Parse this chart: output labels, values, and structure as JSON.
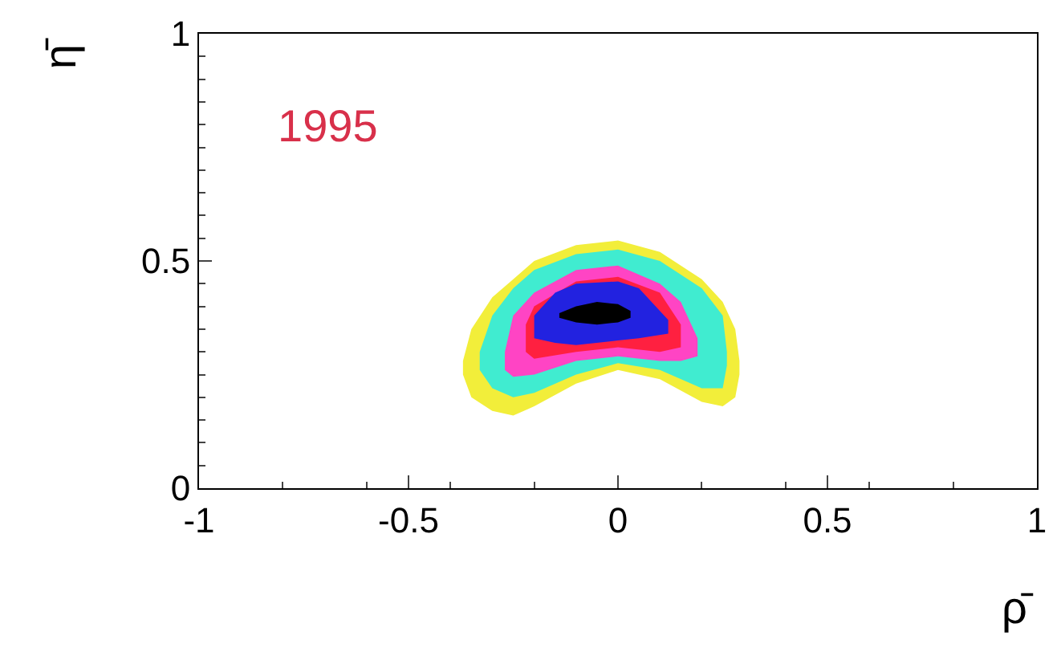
{
  "chart_data": {
    "type": "area",
    "xlabel": "ρ̄",
    "ylabel": "η̄",
    "annotations": [
      "1995"
    ],
    "xlim": [
      -1,
      1
    ],
    "ylim": [
      0,
      1
    ],
    "xticks": [
      -1,
      -0.5,
      0,
      0.5,
      1
    ],
    "yticks": [
      0,
      0.5,
      1
    ],
    "grid": false,
    "series": [
      {
        "color": "#f2ee3a",
        "x": [
          -0.37,
          -0.35,
          -0.3,
          -0.25,
          -0.2,
          -0.1,
          0,
          0.1,
          0.2,
          0.25,
          0.28,
          0.29
        ],
        "values": [
          null,
          null,
          null,
          null,
          null,
          null,
          null,
          null,
          null,
          null,
          null,
          null
        ],
        "upper": [
          0.28,
          0.35,
          0.42,
          0.46,
          0.5,
          0.535,
          0.545,
          0.52,
          0.46,
          0.41,
          0.35,
          0.28
        ],
        "lower": [
          0.25,
          0.2,
          0.17,
          0.16,
          0.18,
          0.23,
          0.26,
          0.24,
          0.19,
          0.18,
          0.2,
          0.25
        ]
      },
      {
        "color": "#40ecd0",
        "x": [
          -0.33,
          -0.3,
          -0.25,
          -0.2,
          -0.1,
          0,
          0.1,
          0.2,
          0.25,
          0.26
        ],
        "values": [
          null,
          null,
          null,
          null,
          null,
          null,
          null,
          null,
          null,
          null
        ],
        "upper": [
          0.3,
          0.38,
          0.44,
          0.48,
          0.515,
          0.525,
          0.5,
          0.44,
          0.38,
          0.3
        ],
        "lower": [
          0.26,
          0.22,
          0.2,
          0.21,
          0.25,
          0.275,
          0.26,
          0.22,
          0.22,
          0.27
        ]
      },
      {
        "color": "#ff44c4",
        "x": [
          -0.27,
          -0.25,
          -0.2,
          -0.1,
          0,
          0.1,
          0.15,
          0.19
        ],
        "values": [
          null,
          null,
          null,
          null,
          null,
          null,
          null,
          null
        ],
        "upper": [
          0.3,
          0.38,
          0.43,
          0.48,
          0.49,
          0.45,
          0.41,
          0.33
        ],
        "lower": [
          0.26,
          0.245,
          0.25,
          0.28,
          0.29,
          0.28,
          0.28,
          0.29
        ]
      },
      {
        "color": "#ff2040",
        "x": [
          -0.22,
          -0.2,
          -0.1,
          0,
          0.1,
          0.15
        ],
        "values": [
          null,
          null,
          null,
          null,
          null,
          null
        ],
        "upper": [
          0.36,
          0.4,
          0.455,
          0.465,
          0.43,
          0.36
        ],
        "lower": [
          0.3,
          0.285,
          0.3,
          0.31,
          0.3,
          0.31
        ]
      },
      {
        "color": "#2222e0",
        "x": [
          -0.2,
          -0.15,
          -0.1,
          0,
          0.05,
          0.12
        ],
        "values": [
          null,
          null,
          null,
          null,
          null,
          null
        ],
        "upper": [
          0.38,
          0.43,
          0.45,
          0.455,
          0.44,
          0.37
        ],
        "lower": [
          0.33,
          0.32,
          0.315,
          0.325,
          0.33,
          0.34
        ]
      },
      {
        "color": "#000000",
        "x": [
          -0.14,
          -0.1,
          -0.05,
          0,
          0.03
        ],
        "values": [
          null,
          null,
          null,
          null,
          null
        ],
        "upper": [
          0.385,
          0.4,
          0.41,
          0.405,
          0.39
        ],
        "lower": [
          0.375,
          0.365,
          0.36,
          0.365,
          0.375
        ]
      }
    ]
  }
}
